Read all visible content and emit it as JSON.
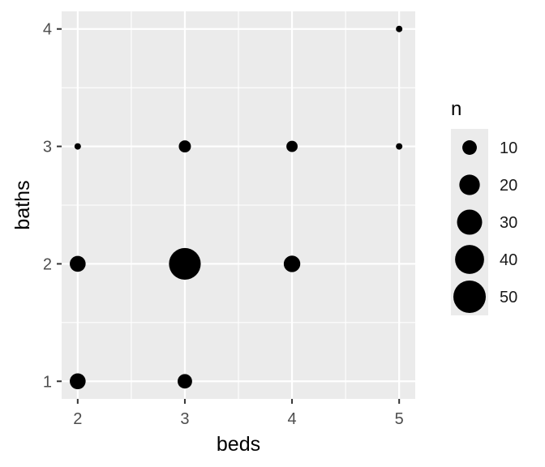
{
  "chart_data": {
    "type": "scatter",
    "xlabel": "beds",
    "ylabel": "baths",
    "xlim": [
      1.85,
      5.15
    ],
    "ylim": [
      0.85,
      4.15
    ],
    "x_ticks": [
      2,
      3,
      4,
      5
    ],
    "y_ticks": [
      1,
      2,
      3,
      4
    ],
    "size_variable": "n",
    "points": [
      {
        "beds": 2,
        "baths": 1,
        "n": 12
      },
      {
        "beds": 3,
        "baths": 1,
        "n": 10
      },
      {
        "beds": 2,
        "baths": 2,
        "n": 12
      },
      {
        "beds": 3,
        "baths": 2,
        "n": 48
      },
      {
        "beds": 4,
        "baths": 2,
        "n": 13
      },
      {
        "beds": 2,
        "baths": 3,
        "n": 2
      },
      {
        "beds": 3,
        "baths": 3,
        "n": 7
      },
      {
        "beds": 4,
        "baths": 3,
        "n": 6
      },
      {
        "beds": 5,
        "baths": 3,
        "n": 2
      },
      {
        "beds": 5,
        "baths": 4,
        "n": 2
      }
    ],
    "legend": {
      "title": "n",
      "position": "right",
      "entries": [
        {
          "label": "10",
          "value": 10
        },
        {
          "label": "20",
          "value": 20
        },
        {
          "label": "30",
          "value": 30
        },
        {
          "label": "40",
          "value": 40
        },
        {
          "label": "50",
          "value": 50
        }
      ]
    },
    "grid": true,
    "colors": {
      "panel_background": "#ebebeb",
      "grid": "#ffffff",
      "point": "#000000",
      "tick_text": "#4d4d4d"
    }
  }
}
